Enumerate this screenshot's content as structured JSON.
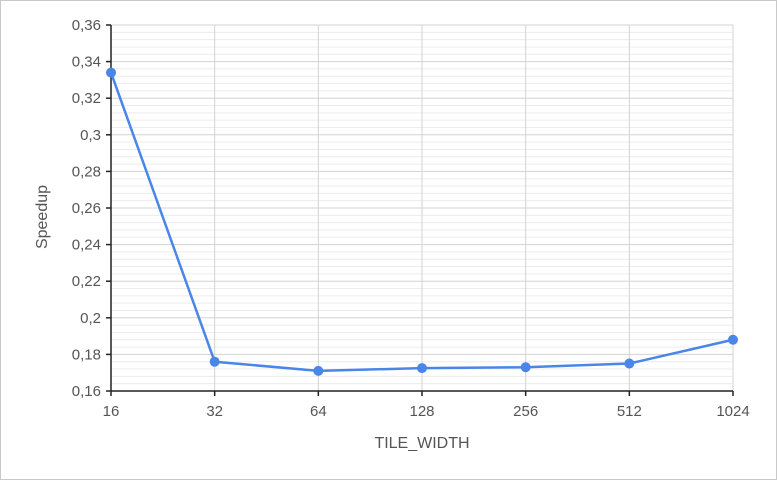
{
  "chart_data": {
    "type": "line",
    "x_categories": [
      "16",
      "32",
      "64",
      "128",
      "256",
      "512",
      "1024"
    ],
    "series": [
      {
        "values": [
          0.334,
          0.176,
          0.171,
          0.1725,
          0.173,
          0.175,
          0.188
        ],
        "color": "#4a86e8"
      }
    ],
    "y_ticks": [
      "0,16",
      "0,18",
      "0,2",
      "0,22",
      "0,24",
      "0,26",
      "0,28",
      "0,3",
      "0,32",
      "0,34",
      "0,36"
    ],
    "ylim": [
      0.16,
      0.36
    ],
    "xlabel": "TILE_WIDTH",
    "ylabel": "Speedup",
    "grid": true,
    "minor_grid": true
  }
}
